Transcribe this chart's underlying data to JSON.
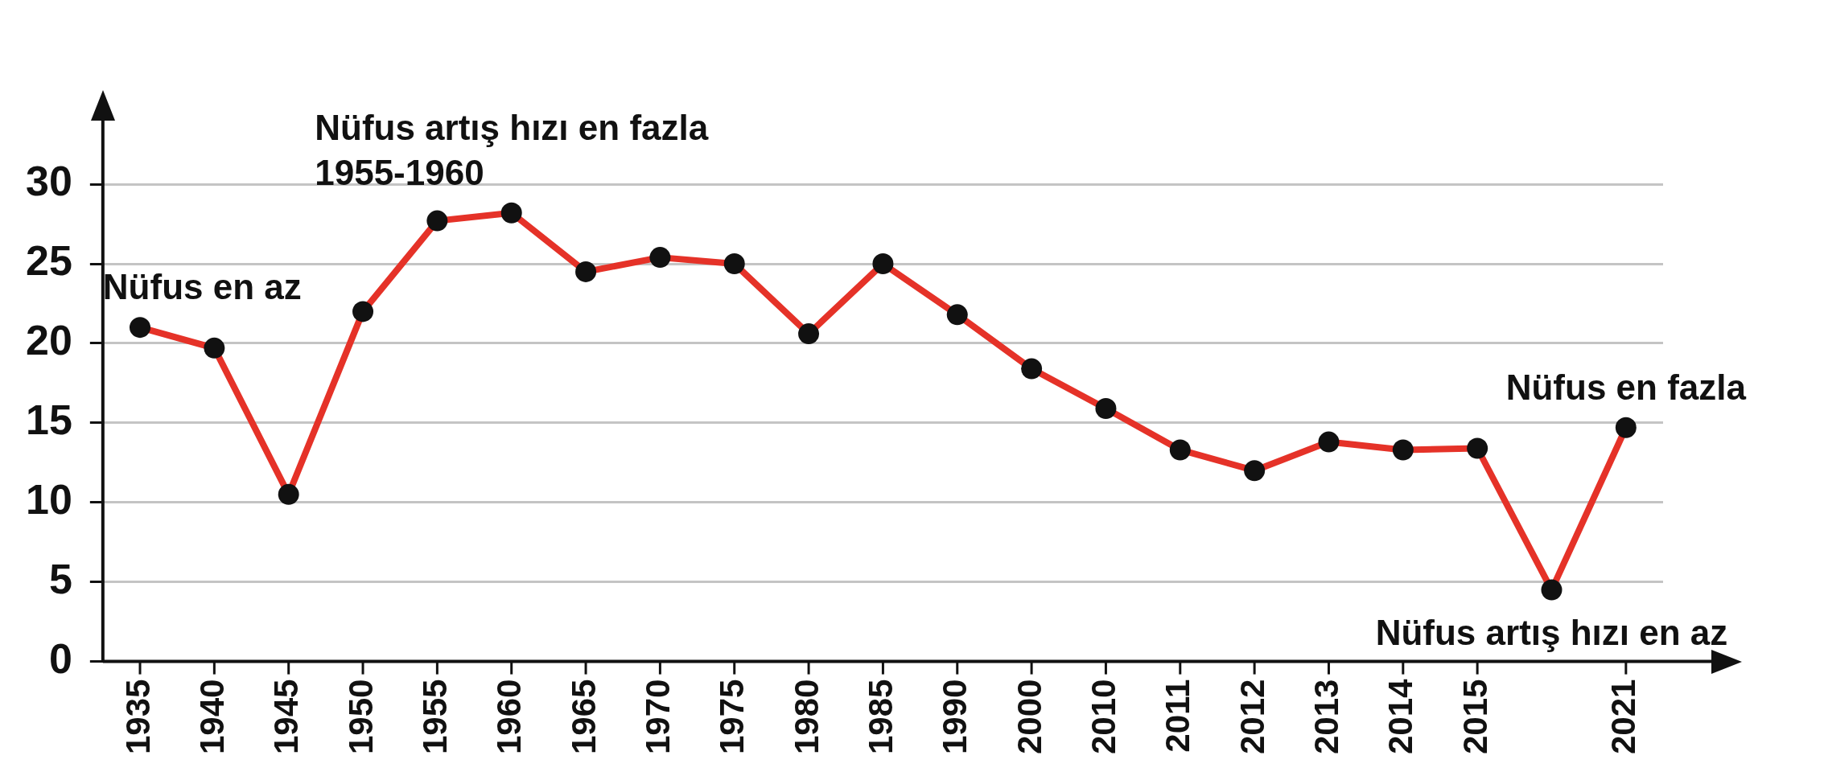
{
  "chart_data": {
    "type": "line",
    "categories": [
      "1935",
      "1940",
      "1945",
      "1950",
      "1955",
      "1960",
      "1965",
      "1970",
      "1975",
      "1980",
      "1985",
      "1990",
      "2000",
      "2010",
      "2011",
      "2012",
      "2013",
      "2014",
      "2015",
      null,
      "2021"
    ],
    "series": [
      {
        "color": "#e53228",
        "values": [
          21.0,
          19.7,
          10.5,
          22.0,
          27.7,
          28.2,
          24.5,
          25.4,
          25.0,
          20.6,
          25.0,
          21.8,
          18.4,
          15.9,
          13.3,
          12.0,
          13.8,
          13.3,
          13.4,
          4.5,
          14.7
        ]
      }
    ],
    "ylim": [
      0,
      34
    ],
    "yticks": [
      0,
      5,
      10,
      15,
      20,
      25,
      30
    ],
    "grid": "y",
    "marker": "circle",
    "line_style": "solid",
    "legend": false,
    "annotations": [
      {
        "text": "Nüfus en az",
        "x": "1935",
        "y": 21.0
      },
      {
        "text": "Nüfus artış hızı en fazla\n1955-1960",
        "x": "1960",
        "y": 28.2
      },
      {
        "text": "Nüfus en fazla",
        "x": "2021",
        "y": 14.7
      },
      {
        "text": "Nüfus artış hızı en az",
        "y": 4.5
      }
    ]
  }
}
